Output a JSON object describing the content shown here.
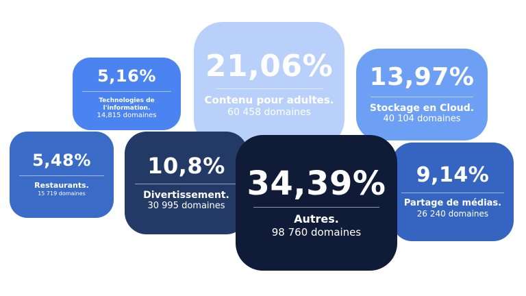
{
  "colors": {
    "adultes": "#b9d0fa",
    "cloud": "#6d9ff4",
    "it": "#4b84f0",
    "restaurants": "#3a6bc7",
    "divertissement": "#243a66",
    "autres": "#101b38",
    "medias": "#3565c0"
  },
  "chart_data": {
    "type": "bubble",
    "unit": "%",
    "items": [
      {
        "key": "adultes",
        "label": "Contenu pour adultes.",
        "value": 21.06,
        "display": "21,06%",
        "count": "60 458 domaines"
      },
      {
        "key": "cloud",
        "label": "Stockage en Cloud.",
        "value": 13.97,
        "display": "13,97%",
        "count": "40 104 domaines"
      },
      {
        "key": "it",
        "label": "Technologies de l'information.",
        "value": 5.16,
        "display": "5,16%",
        "count": "14,815 domaines"
      },
      {
        "key": "restaurants",
        "label": "Restaurants.",
        "value": 5.48,
        "display": "5,48%",
        "count": "15 719 domaines"
      },
      {
        "key": "divertissement",
        "label": "Divertissement.",
        "value": 10.8,
        "display": "10,8%",
        "count": "30 995 domaines"
      },
      {
        "key": "autres",
        "label": "Autres.",
        "value": 34.39,
        "display": "34,39%",
        "count": "98 760 domaines"
      },
      {
        "key": "medias",
        "label": "Partage de médias.",
        "value": 9.14,
        "display": "9,14%",
        "count": "26 240 domaines"
      }
    ]
  }
}
